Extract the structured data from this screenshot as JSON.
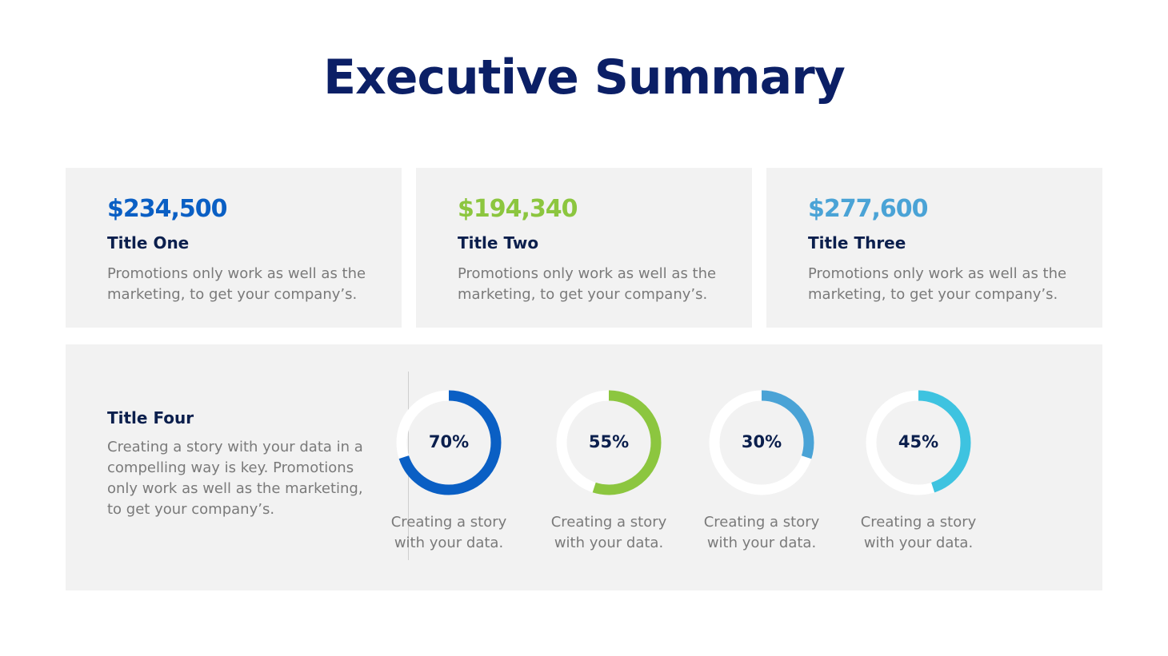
{
  "title": "Executive Summary",
  "cards": [
    {
      "amount": "$234,500",
      "title": "Title One",
      "desc": "Promotions only work as well as the marketing, to get your company’s.",
      "color": "#0a5fc4"
    },
    {
      "amount": "$194,340",
      "title": "Title Two",
      "desc": "Promotions only work as well as the marketing, to get your company’s.",
      "color": "#8cc63f"
    },
    {
      "amount": "$277,600",
      "title": "Title Three",
      "desc": "Promotions only work as well as the marketing, to get your company’s.",
      "color": "#4aa3d6"
    }
  ],
  "bottom": {
    "title": "Title Four",
    "desc": "Creating a story with your data in a compelling way is key. Promotions only work as well as the marketing, to get your company’s.",
    "donuts": [
      {
        "value": 70,
        "label": "70%",
        "caption": "Creating a story with your data.",
        "color": "#0a5fc4"
      },
      {
        "value": 55,
        "label": "55%",
        "caption": "Creating a story with your data.",
        "color": "#8cc63f"
      },
      {
        "value": 30,
        "label": "30%",
        "caption": "Creating a story with your data.",
        "color": "#4aa3d6"
      },
      {
        "value": 45,
        "label": "45%",
        "caption": "Creating a story with your data.",
        "color": "#3ec3e0"
      }
    ]
  }
}
